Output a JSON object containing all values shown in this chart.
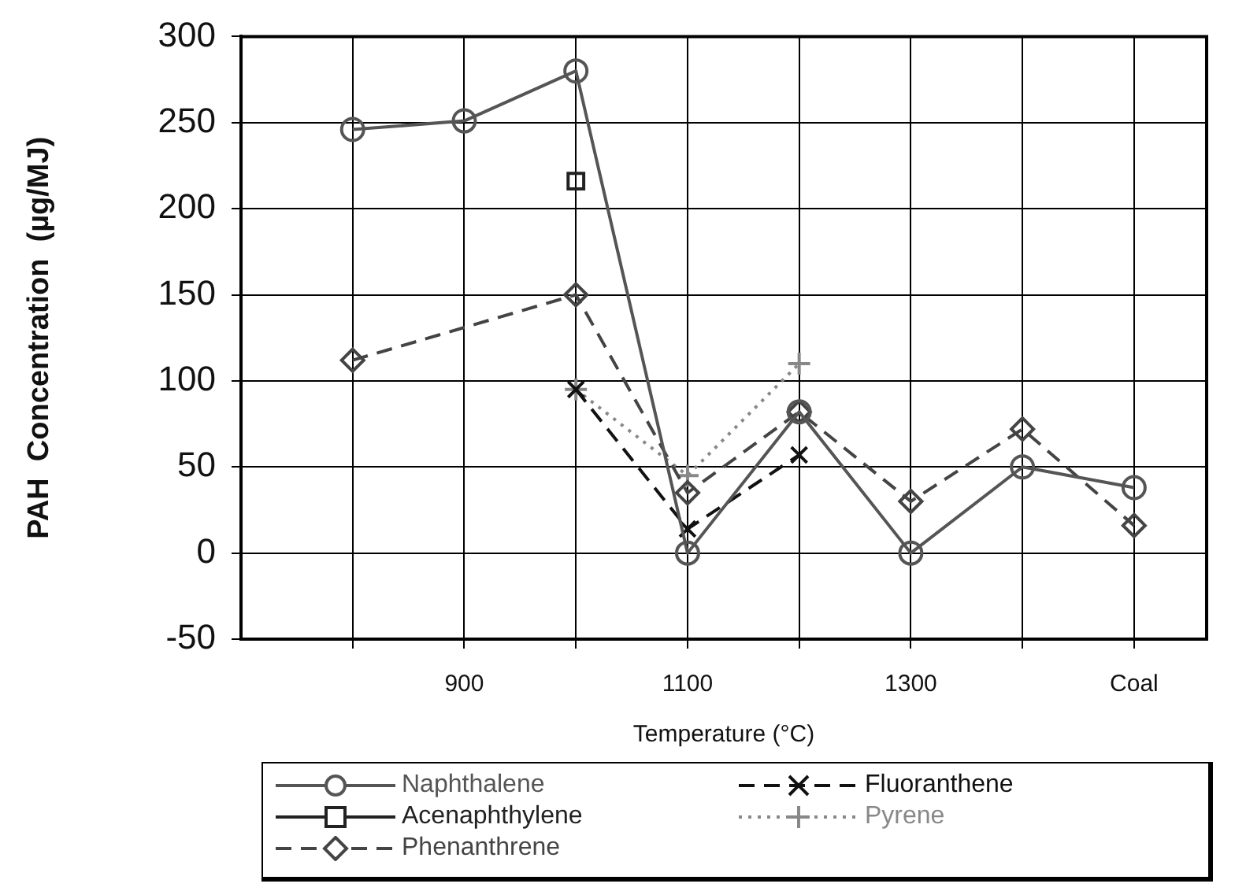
{
  "chart_data": {
    "type": "line",
    "xlabel": "Temperature (°C)",
    "ylabel": "PAH  Concentration  (µg/MJ)",
    "xlim": [
      700,
      1565
    ],
    "xticks": [
      {
        "value": 800,
        "label": null
      },
      900,
      {
        "value": 1000,
        "label": null
      },
      1100,
      {
        "value": 1200,
        "label": null
      },
      1300,
      {
        "value": 1400,
        "label": null
      },
      {
        "value": 1500,
        "label": "Coal"
      }
    ],
    "ylim": [
      -50,
      300
    ],
    "yticks": [
      -50,
      0,
      50,
      100,
      150,
      200,
      250,
      300
    ],
    "grid": true,
    "legend": "bottom",
    "series": [
      {
        "name": "Naphthalene",
        "color": "#555555",
        "marker": "circle",
        "line_style": "solid",
        "x": [
          800,
          900,
          1000,
          1100,
          1200,
          1300,
          1400,
          1500
        ],
        "values": [
          246,
          251,
          280,
          0,
          82,
          0,
          50,
          38
        ]
      },
      {
        "name": "Acenaphthylene",
        "color": "#222222",
        "marker": "square",
        "line_style": "solid",
        "x": [
          1000
        ],
        "values": [
          216
        ]
      },
      {
        "name": "Phenanthrene",
        "color": "#444444",
        "marker": "diamond",
        "line_style": "dashed",
        "x": [
          800,
          1000,
          1100,
          1200,
          1300,
          1400,
          1500
        ],
        "values": [
          112,
          150,
          35,
          82,
          30,
          72,
          16
        ]
      },
      {
        "name": "Fluoranthene",
        "color": "#111111",
        "marker": "cross",
        "line_style": "dashed",
        "x": [
          1000,
          1100,
          1200
        ],
        "values": [
          95,
          14,
          57
        ]
      },
      {
        "name": "Pyrene",
        "color": "#888888",
        "marker": "plus",
        "line_style": "dotted",
        "x": [
          1000,
          1100,
          1200
        ],
        "values": [
          95,
          45,
          110
        ]
      }
    ]
  }
}
